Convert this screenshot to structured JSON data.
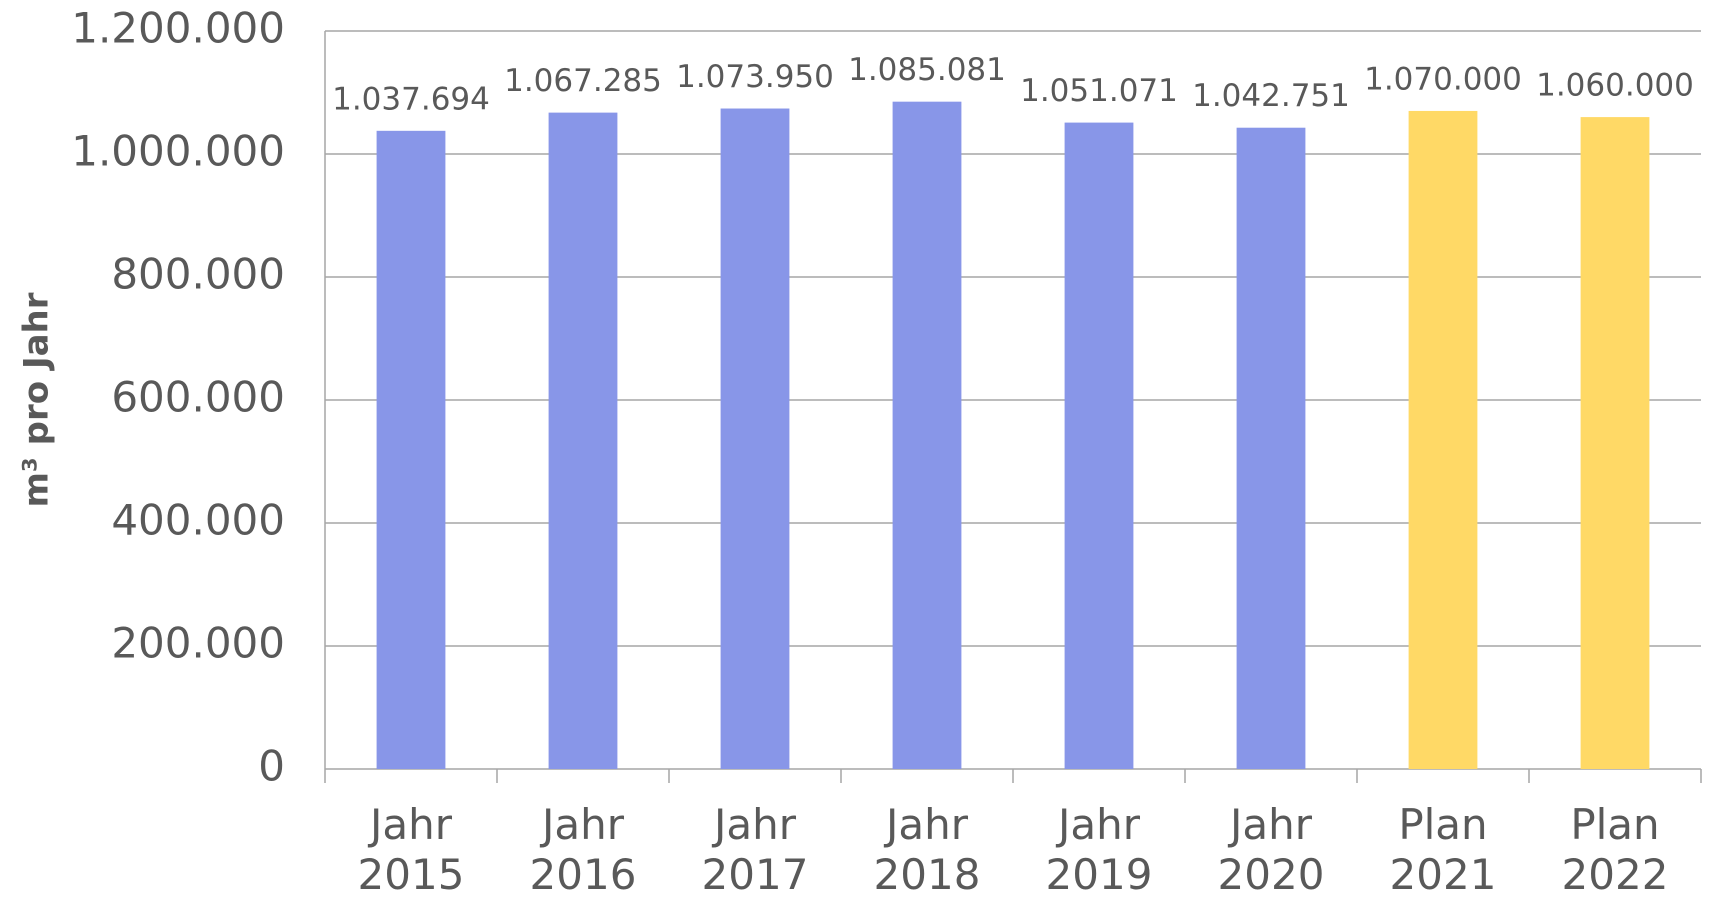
{
  "chart_data": {
    "type": "bar",
    "y_label": "m³ pro Jahr",
    "categories": [
      "Jahr 2015",
      "Jahr 2016",
      "Jahr 2017",
      "Jahr 2018",
      "Jahr 2019",
      "Jahr 2020",
      "Plan 2021",
      "Plan 2022"
    ],
    "values": [
      1037694,
      1067285,
      1073950,
      1085081,
      1051071,
      1042751,
      1070000,
      1060000
    ],
    "value_labels": [
      "1.037.694",
      "1.067.285",
      "1.073.950",
      "1.085.081",
      "1.051.071",
      "1.042.751",
      "1.070.000",
      "1.060.000"
    ],
    "colors": [
      "#8896e8",
      "#8896e8",
      "#8896e8",
      "#8896e8",
      "#8896e8",
      "#8896e8",
      "#ffd966",
      "#ffd966"
    ],
    "ylim": [
      0,
      1200000
    ],
    "yticks": [
      0,
      {
        "value": 200000,
        "label": "200.000"
      },
      {
        "value": 400000,
        "label": "400.000"
      },
      {
        "value": 600000,
        "label": "600.000"
      },
      {
        "value": 800000,
        "label": "800.000"
      },
      {
        "value": 1000000,
        "label": "1.000.000"
      },
      {
        "value": 1200000,
        "label": "1.200.000"
      }
    ],
    "grid": true
  }
}
